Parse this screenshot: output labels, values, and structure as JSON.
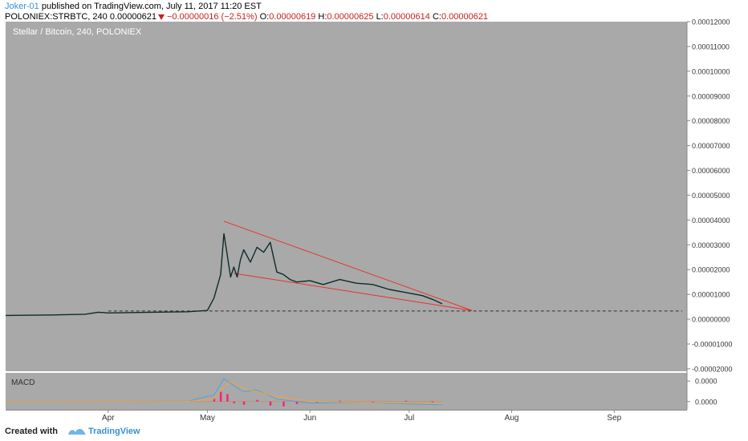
{
  "header": {
    "author": "Joker-01",
    "published": "published on TradingView.com, July 11, 2017 11:20 EST",
    "symbol": "POLONIEX:STRBTC, 240",
    "last_price": "0.00000621",
    "change": "−0.00000016 (−2.51%)",
    "o_label": "O:",
    "o_value": "0.00000619",
    "h_label": "H:",
    "h_value": "0.00000625",
    "l_label": "L:",
    "l_value": "0.00000614",
    "c_label": "C:",
    "c_value": "0.00000621"
  },
  "footer": {
    "created_with": "Created with",
    "brand": "TradingView"
  },
  "colors": {
    "plot_bg": "#a9a9a9",
    "price_line": "#0d2b2b",
    "trend_line": "#e8322c",
    "macd_line": "#4aa3df",
    "signal_line": "#f3a33a",
    "histogram": "#ff1f7a",
    "axis_text": "#333333"
  },
  "chart_data": [
    {
      "type": "line",
      "title": "Stellar / Bitcoin, 240, POLONIEX",
      "xlabel": "",
      "ylabel": "",
      "x_ticks": [
        "Apr",
        "May",
        "Jun",
        "Jul",
        "Aug",
        "Sep"
      ],
      "y_ticks": [
        "0.00012000",
        "0.00011000",
        "0.00010000",
        "0.00009000",
        "0.00008000",
        "0.00007000",
        "0.00006000",
        "0.00005000",
        "0.00004000",
        "0.00003000",
        "0.00002000",
        "0.00001000",
        "0.00000000",
        "-0.00001000",
        "-0.00002000"
      ],
      "ylim": [
        -2.1e-05,
        0.00012
      ],
      "xlim": [
        "2017-03-01",
        "2017-09-23"
      ],
      "grid": false,
      "series": [
        {
          "x": [
            "2017-03-01",
            "2017-03-15",
            "2017-03-25",
            "2017-03-29",
            "2017-04-01",
            "2017-04-10",
            "2017-04-25",
            "2017-05-01",
            "2017-05-03",
            "2017-05-05",
            "2017-05-06",
            "2017-05-07",
            "2017-05-08",
            "2017-05-09",
            "2017-05-10",
            "2017-05-11",
            "2017-05-12",
            "2017-05-14",
            "2017-05-16",
            "2017-05-18",
            "2017-05-20",
            "2017-05-21",
            "2017-05-22",
            "2017-05-24",
            "2017-05-26",
            "2017-05-28",
            "2017-06-01",
            "2017-06-05",
            "2017-06-10",
            "2017-06-15",
            "2017-06-20",
            "2017-06-25",
            "2017-07-01",
            "2017-07-05",
            "2017-07-08",
            "2017-07-11"
          ],
          "y": [
            1.5e-06,
            1.7e-06,
            2e-06,
            2.8e-06,
            2.5e-06,
            2.7e-06,
            3e-06,
            3.5e-06,
            8.5e-06,
            1.8e-05,
            3.45e-05,
            2.6e-05,
            1.7e-05,
            2.1e-05,
            1.7e-05,
            2.4e-05,
            2.8e-05,
            2.3e-05,
            2.9e-05,
            2.7e-05,
            3.1e-05,
            2.5e-05,
            1.9e-05,
            1.8e-05,
            1.6e-05,
            1.5e-05,
            1.55e-05,
            1.4e-05,
            1.6e-05,
            1.45e-05,
            1.4e-05,
            1.2e-05,
            1.05e-05,
            9.5e-06,
            8e-06,
            6.2e-06
          ]
        }
      ],
      "annotations": [
        {
          "type": "trendline",
          "x": [
            "2017-05-06",
            "2017-07-20"
          ],
          "y": [
            3.95e-05,
            3.5e-06
          ]
        },
        {
          "type": "trendline",
          "x": [
            "2017-05-09",
            "2017-07-20"
          ],
          "y": [
            1.85e-05,
            3.5e-06
          ]
        },
        {
          "type": "hline",
          "y": 3.3e-06,
          "style": "dashed"
        }
      ]
    },
    {
      "type": "line",
      "title": "MACD",
      "y_ticks": [
        "0.0000",
        "0.0000"
      ],
      "ylim": [
        -1e-06,
        3.5e-06
      ],
      "series": [
        {
          "x": [
            "2017-03-01",
            "2017-04-25",
            "2017-05-03",
            "2017-05-06",
            "2017-05-08",
            "2017-05-12",
            "2017-05-16",
            "2017-05-22",
            "2017-06-01",
            "2017-06-15",
            "2017-07-01",
            "2017-07-11"
          ],
          "y": [
            0,
            5e-08,
            8e-07,
            2.8e-06,
            2.2e-06,
            1.2e-06,
            1.4e-06,
            3e-07,
            -2e-07,
            -1e-07,
            -3e-07,
            -4e-07
          ]
        },
        {
          "x": [
            "2017-03-01",
            "2017-04-25",
            "2017-05-03",
            "2017-05-06",
            "2017-05-08",
            "2017-05-12",
            "2017-05-16",
            "2017-05-22",
            "2017-06-01",
            "2017-06-15",
            "2017-07-01",
            "2017-07-11"
          ],
          "y": [
            0,
            3e-08,
            3e-07,
            1.8e-06,
            2.4e-06,
            1.6e-06,
            1.2e-06,
            6e-07,
            0,
            -1e-07,
            -2e-07,
            -3e-07
          ]
        },
        {
          "x": [
            "2017-05-03",
            "2017-05-05",
            "2017-05-07",
            "2017-05-09",
            "2017-05-12",
            "2017-05-16",
            "2017-05-20",
            "2017-05-24",
            "2017-05-28",
            "2017-06-03",
            "2017-06-10",
            "2017-06-20",
            "2017-06-30",
            "2017-07-08"
          ],
          "y": [
            4e-07,
            1.2e-06,
            9e-07,
            -2e-07,
            -4e-07,
            2e-07,
            -5e-07,
            -6e-07,
            -3e-07,
            -2e-07,
            1e-07,
            -1e-07,
            1e-07,
            -1e-07
          ]
        }
      ]
    }
  ]
}
